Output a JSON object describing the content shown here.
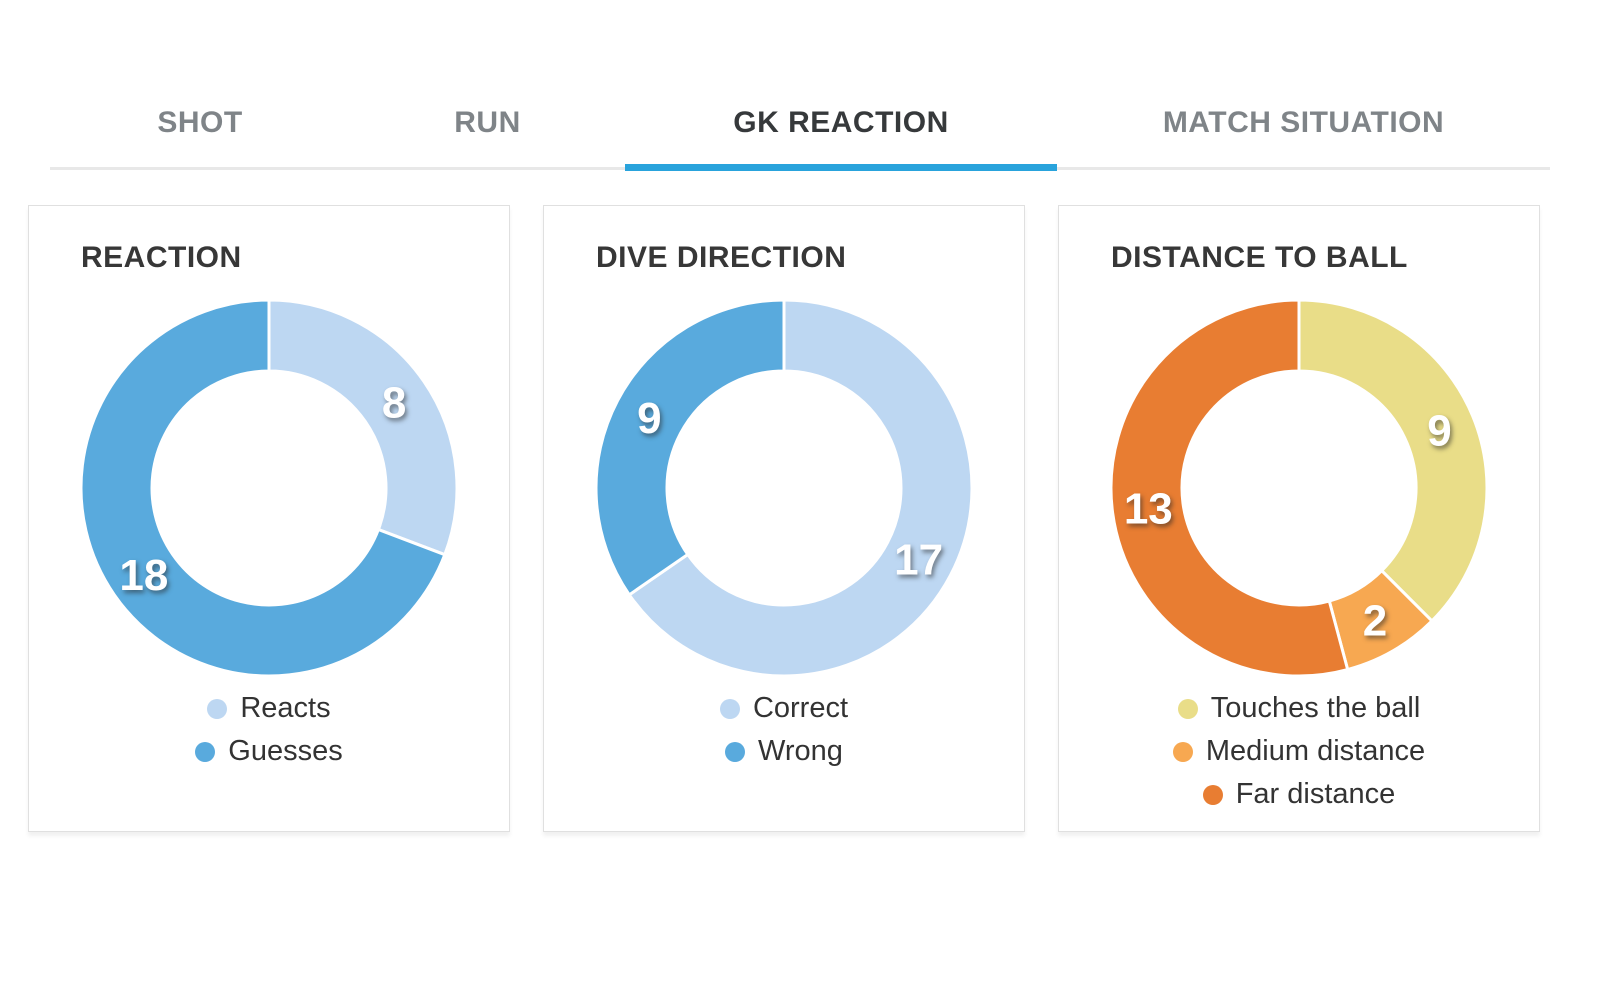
{
  "tabs": {
    "items": [
      {
        "label": "SHOT",
        "active": false
      },
      {
        "label": "RUN",
        "active": false
      },
      {
        "label": "GK REACTION",
        "active": true
      },
      {
        "label": "MATCH SITUATION",
        "active": false
      }
    ]
  },
  "colors": {
    "accent_underline": "#29a3dc",
    "inactive_tab_text": "#7f8488",
    "active_tab_text": "#36393b",
    "light_blue": "#bdd7f2",
    "blue": "#59aadd",
    "yellow": "#e9dd88",
    "medium_orange": "#f7a851",
    "far_orange": "#e87d32"
  },
  "chart_data": [
    {
      "type": "pie",
      "subtype": "donut",
      "title": "REACTION",
      "labels": [
        "Reacts",
        "Guesses"
      ],
      "values": [
        8,
        18
      ],
      "colors": [
        "#bdd7f2",
        "#59aadd"
      ],
      "start_angle_deg": 0,
      "direction": "clockwise",
      "legend_position": "bottom",
      "data_labels": "white numbers inside ring"
    },
    {
      "type": "pie",
      "subtype": "donut",
      "title": "DIVE DIRECTION",
      "labels": [
        "Correct",
        "Wrong"
      ],
      "values": [
        17,
        9
      ],
      "colors": [
        "#bdd7f2",
        "#59aadd"
      ],
      "start_angle_deg": 0,
      "direction": "clockwise",
      "legend_position": "bottom",
      "data_labels": "white numbers inside ring"
    },
    {
      "type": "pie",
      "subtype": "donut",
      "title": "DISTANCE TO BALL",
      "labels": [
        "Touches the ball",
        "Medium distance",
        "Far distance"
      ],
      "values": [
        9,
        2,
        13
      ],
      "colors": [
        "#e9dd88",
        "#f7a851",
        "#e87d32"
      ],
      "start_angle_deg": 0,
      "direction": "clockwise",
      "legend_position": "bottom",
      "data_labels": "white numbers inside ring"
    }
  ]
}
